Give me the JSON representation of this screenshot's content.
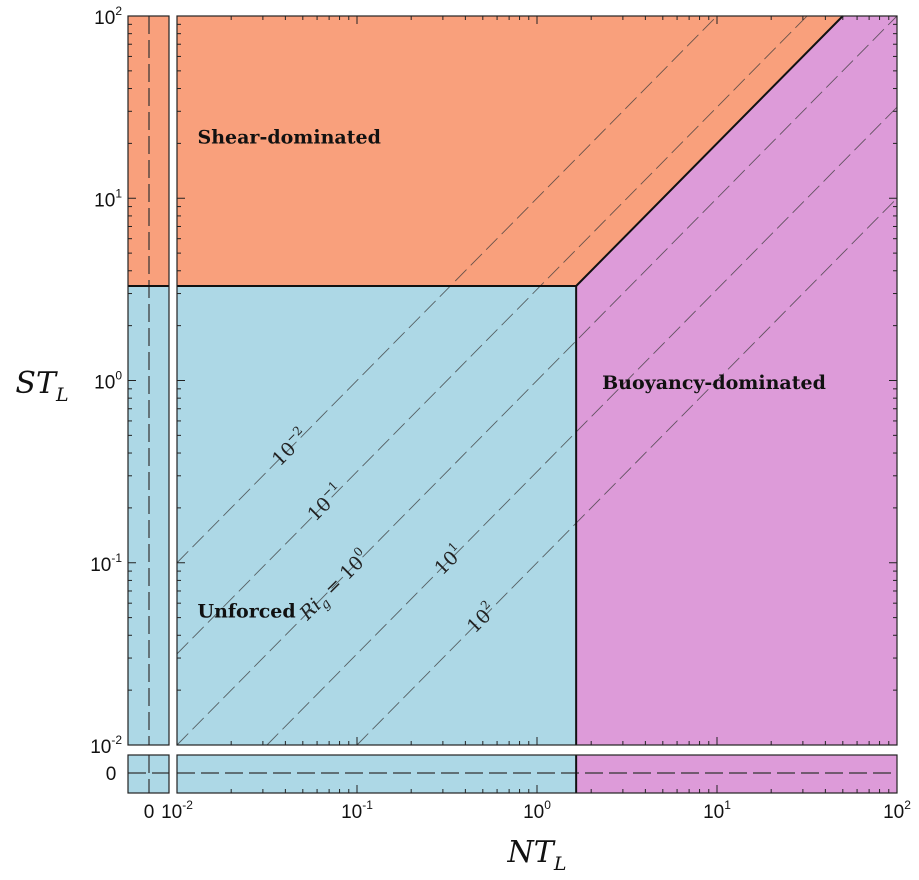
{
  "chart_data": {
    "type": "area",
    "title": "",
    "xlabel": {
      "base": "NT",
      "sub": "L"
    },
    "ylabel": {
      "base": "ST",
      "sub": "L"
    },
    "xscale": "log",
    "yscale": "log",
    "xlim": [
      0.01,
      100
    ],
    "ylim": [
      0.01,
      100
    ],
    "grid": false,
    "x_ticks": [
      {
        "value": 0.01,
        "base": "10",
        "exp": "-2"
      },
      {
        "value": 0.1,
        "base": "10",
        "exp": "-1"
      },
      {
        "value": 1,
        "base": "10",
        "exp": "0"
      },
      {
        "value": 10,
        "base": "10",
        "exp": "1"
      },
      {
        "value": 100,
        "base": "10",
        "exp": "2"
      }
    ],
    "y_ticks": [
      {
        "value": 0.01,
        "base": "10",
        "exp": "-2"
      },
      {
        "value": 0.1,
        "base": "10",
        "exp": "-1"
      },
      {
        "value": 1,
        "base": "10",
        "exp": "0"
      },
      {
        "value": 10,
        "base": "10",
        "exp": "1"
      },
      {
        "value": 100,
        "base": "10",
        "exp": "2"
      }
    ],
    "zero_tick_label": "0",
    "thresholds": {
      "ST_L": 3.3,
      "NT_L": 1.65
    },
    "boundary_line": {
      "from": [
        1.65,
        3.3
      ],
      "to": [
        50,
        100
      ]
    },
    "regions": [
      {
        "name": "Shear-dominated",
        "color": "#f9a07c",
        "label_at": [
          0.013,
          20
        ]
      },
      {
        "name": "Unforced",
        "color": "#add8e6",
        "label_at": [
          0.013,
          0.05
        ]
      },
      {
        "name": "Buoyancy-dominated",
        "color": "#dd9bd9",
        "label_at": [
          2.3,
          0.9
        ]
      }
    ],
    "ri_lines": [
      {
        "ri": 0.01,
        "label": {
          "base": "10",
          "exp": "−2",
          "prefix": ""
        },
        "label_at": 0.265
      },
      {
        "ri": 0.1,
        "label": {
          "base": "10",
          "exp": "−1",
          "prefix": ""
        },
        "label_at": 0.26
      },
      {
        "ri": 1,
        "label": {
          "base": "10",
          "exp": "0",
          "prefix": "Ri",
          "prefix_sub": "g",
          "eq": " = "
        },
        "label_at": 0.245
      },
      {
        "ri": 10,
        "label": {
          "base": "10",
          "exp": "1",
          "prefix": ""
        },
        "label_at": 0.44
      },
      {
        "ri": 100,
        "label": {
          "base": "10",
          "exp": "2",
          "prefix": ""
        },
        "label_at": 0.42
      }
    ]
  }
}
